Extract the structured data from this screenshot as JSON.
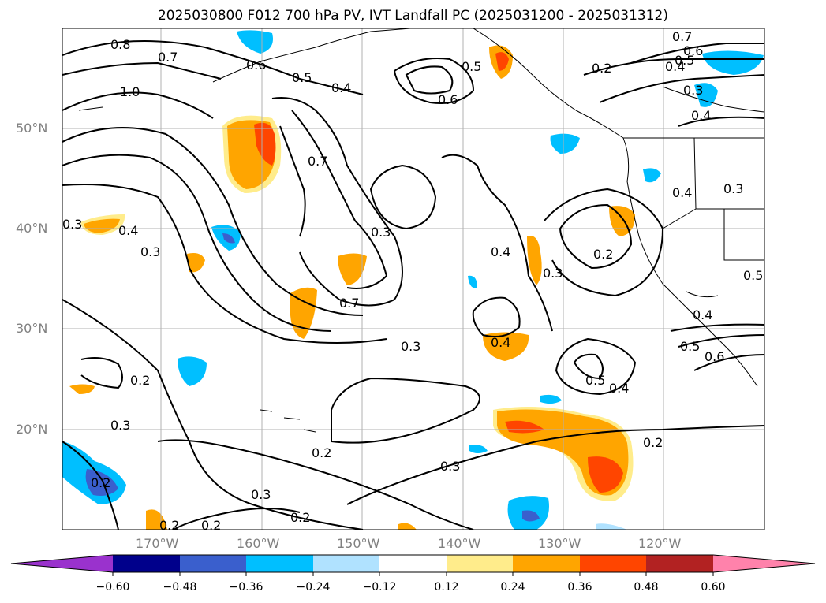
{
  "title": "2025030800 F012 700 hPa PV, IVT Landfall PC (2025031200 - 2025031312)",
  "map": {
    "lat_ticks": [
      "50°N",
      "40°N",
      "30°N",
      "20°N"
    ],
    "lon_ticks": [
      "170°W",
      "160°W",
      "150°W",
      "140°W",
      "130°W",
      "120°W"
    ],
    "gridlines": true,
    "colors": {
      "coast": "#000000",
      "grid": "#b0b0b0",
      "contour": "#000000"
    }
  },
  "contour_labels": [
    "0.8",
    "0.7",
    "1.0",
    "0.6",
    "0.5",
    "0.4",
    "0.5",
    "0.6",
    "0.2",
    "0.7",
    "0.6",
    "0.5",
    "0.4",
    "0.3",
    "0.4",
    "0.7",
    "0.4",
    "0.3",
    "0.4",
    "0.3",
    "0.3",
    "0.4",
    "0.3",
    "0.2",
    "0.5",
    "0.7",
    "0.3",
    "0.4",
    "0.4",
    "0.5",
    "0.6",
    "0.5",
    "0.4",
    "0.2",
    "0.3",
    "0.2",
    "0.2",
    "0.3",
    "0.3",
    "0.2",
    "0.2",
    "0.2",
    "0.2",
    "0.3"
  ],
  "colorbar": {
    "ticks": [
      "−0.60",
      "−0.48",
      "−0.36",
      "−0.24",
      "−0.12",
      "0.12",
      "0.24",
      "0.36",
      "0.48",
      "0.60"
    ],
    "colors": [
      "#9a32cd",
      "#00008b",
      "#3a5fcd",
      "#00bfff",
      "#b0e2ff",
      "#ffffff",
      "#ffec8b",
      "#ffa500",
      "#ff4500",
      "#b22222",
      "#ff82ab"
    ]
  }
}
